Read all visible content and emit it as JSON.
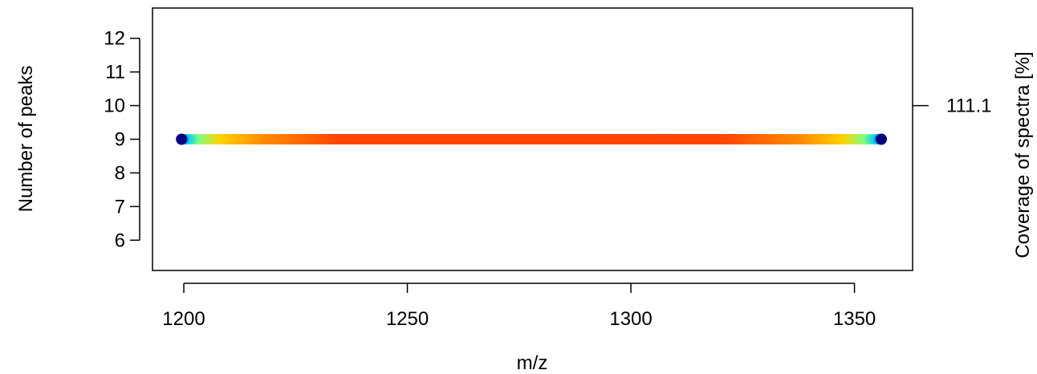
{
  "chart_data": {
    "type": "scatter",
    "xlabel": "m/z",
    "ylabel": "Number of peaks",
    "y2label": "Coverage of spectra [%]",
    "xlim": [
      1193,
      1363
    ],
    "ylim": [
      5.1,
      12.9
    ],
    "x_ticks": [
      1200,
      1250,
      1300,
      1350
    ],
    "y_ticks": [
      6,
      7,
      8,
      9,
      10,
      11,
      12
    ],
    "y2_ticks": [
      {
        "value": 10,
        "label": "111.1"
      }
    ],
    "series": [
      {
        "y": 9,
        "x_start": 1199.5,
        "x_end": 1356,
        "n_points": 320,
        "colormap": "jet (blue to red by coverage)",
        "colors": [
          "#00007f",
          "#00c8ff",
          "#7fff7f",
          "#ffd200",
          "#ff8c00",
          "#ff4400"
        ]
      }
    ],
    "grid": false,
    "legend": "none"
  }
}
